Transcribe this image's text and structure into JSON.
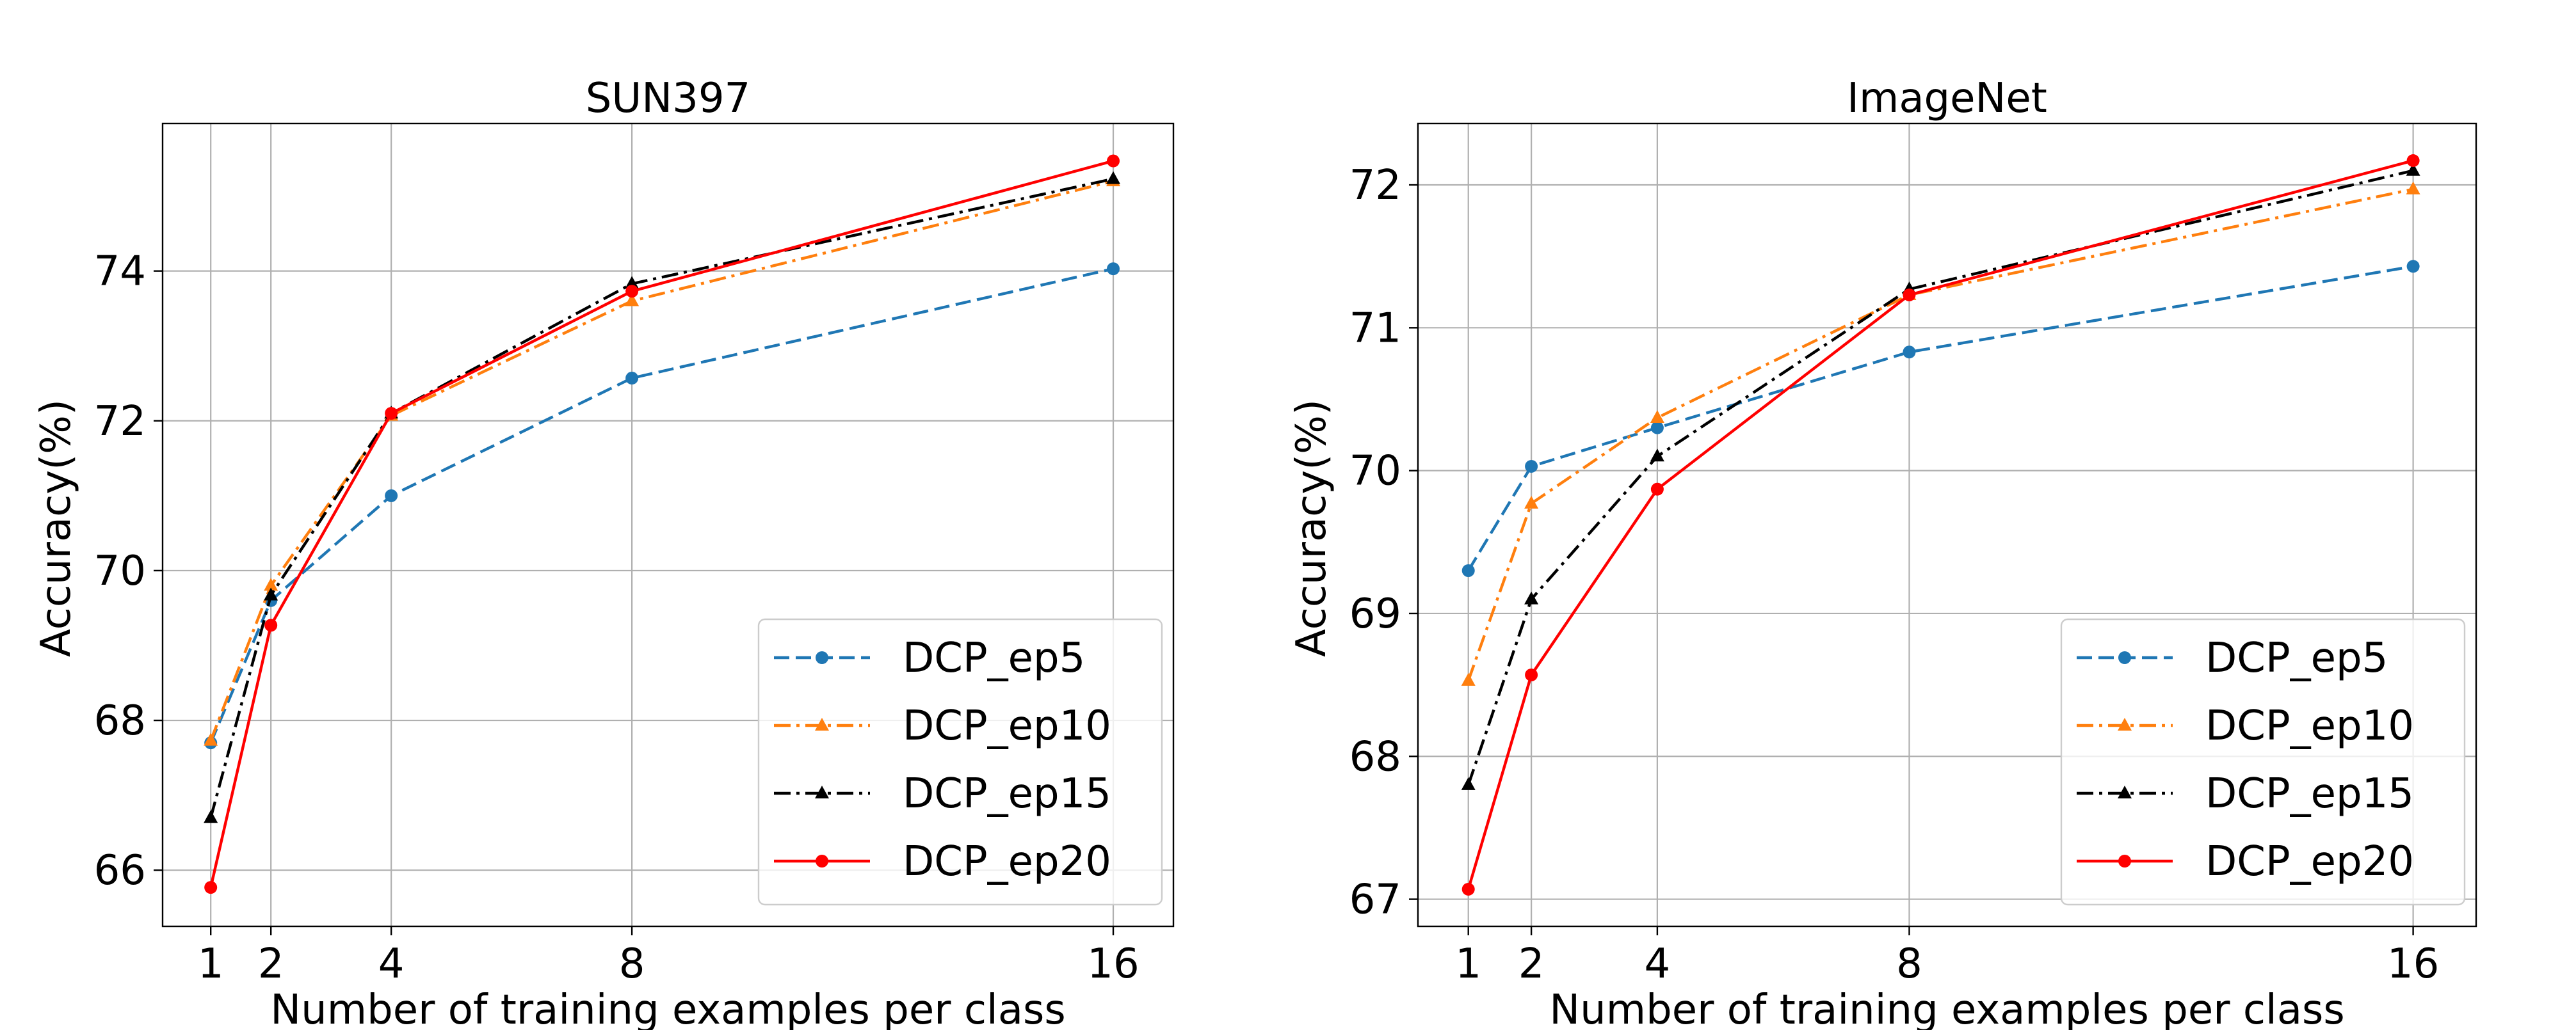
{
  "chart_data": [
    {
      "type": "line",
      "title": "SUN397",
      "xlabel": "Number of training examples per class",
      "ylabel": "Accuracy(%)",
      "x": [
        1,
        2,
        4,
        8,
        16
      ],
      "x_ticks": [
        "1",
        "2",
        "4",
        "8",
        "16"
      ],
      "xlim": [
        0.2,
        17.0
      ],
      "ylim": [
        65.25,
        75.97
      ],
      "y_ticks": [
        "66",
        "68",
        "70",
        "72",
        "74"
      ],
      "grid": true,
      "legend_position": "lower-right",
      "series": [
        {
          "name": "DCP_ep5",
          "values": [
            67.7,
            69.6,
            71.0,
            72.57,
            74.03
          ],
          "color": "#1f77b4",
          "dash": "dashed",
          "marker": "circle"
        },
        {
          "name": "DCP_ep10",
          "values": [
            67.73,
            69.8,
            72.07,
            73.6,
            75.2
          ],
          "color": "#ff7f0e",
          "dash": "dashdot",
          "marker": "triangle"
        },
        {
          "name": "DCP_ep15",
          "values": [
            66.7,
            69.67,
            72.1,
            73.83,
            75.23
          ],
          "color": "#000000",
          "dash": "dashdot",
          "marker": "triangle"
        },
        {
          "name": "DCP_ep20",
          "values": [
            65.77,
            69.27,
            72.1,
            73.73,
            75.47
          ],
          "color": "#ff0000",
          "dash": "solid",
          "marker": "circle"
        }
      ]
    },
    {
      "type": "line",
      "title": "ImageNet",
      "xlabel": "Number of training examples per class",
      "ylabel": "Accuracy(%)",
      "x": [
        1,
        2,
        4,
        8,
        16
      ],
      "x_ticks": [
        "1",
        "2",
        "4",
        "8",
        "16"
      ],
      "xlim": [
        0.2,
        17.0
      ],
      "ylim": [
        66.81,
        72.43
      ],
      "y_ticks": [
        "67",
        "68",
        "69",
        "70",
        "71",
        "72"
      ],
      "grid": true,
      "legend_position": "lower-right",
      "series": [
        {
          "name": "DCP_ep5",
          "values": [
            69.3,
            70.03,
            70.3,
            70.83,
            71.43
          ],
          "color": "#1f77b4",
          "dash": "dashed",
          "marker": "circle"
        },
        {
          "name": "DCP_ep10",
          "values": [
            68.53,
            69.77,
            70.37,
            71.23,
            71.97
          ],
          "color": "#ff7f0e",
          "dash": "dashdot",
          "marker": "triangle"
        },
        {
          "name": "DCP_ep15",
          "values": [
            67.8,
            69.1,
            70.1,
            71.27,
            72.1
          ],
          "color": "#000000",
          "dash": "dashdot",
          "marker": "triangle"
        },
        {
          "name": "DCP_ep20",
          "values": [
            67.07,
            68.57,
            69.87,
            71.23,
            72.17
          ],
          "color": "#ff0000",
          "dash": "solid",
          "marker": "circle"
        }
      ]
    }
  ]
}
